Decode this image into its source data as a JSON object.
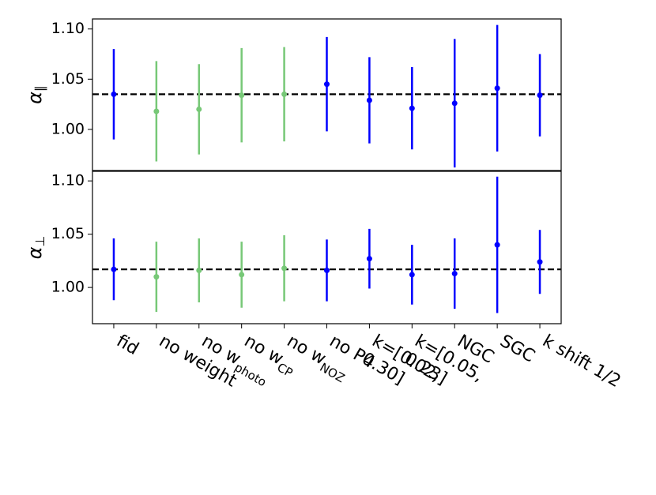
{
  "chart_data": [
    {
      "type": "errorbar",
      "ylabel": "α",
      "ylabel_sub": "∥",
      "values": [
        1.035,
        1.018,
        1.02,
        1.034,
        1.035,
        1.045,
        1.029,
        1.021,
        1.026,
        1.041,
        1.034
      ],
      "errors": [
        0.045,
        0.05,
        0.045,
        0.047,
        0.047,
        0.047,
        0.043,
        0.041,
        0.064,
        0.063,
        0.041
      ],
      "colors": [
        "#0000ff",
        "#77c877",
        "#77c877",
        "#77c877",
        "#77c877",
        "#0000ff",
        "#0000ff",
        "#0000ff",
        "#0000ff",
        "#0000ff",
        "#0000ff"
      ],
      "hline": 1.035,
      "ylim": [
        0.959,
        1.11
      ],
      "yticks": [
        {
          "value": 1,
          "label": "1.00"
        },
        1.05,
        {
          "value": 1.1,
          "label": "1.10"
        }
      ]
    },
    {
      "type": "errorbar",
      "ylabel": "α",
      "ylabel_sub": "⊥",
      "categories": [
        "fid",
        "no weight",
        "no w",
        "no w",
        "no w",
        "no P4",
        "k=[0.02,\n0.30]",
        "k=[0.05,\n0.23]",
        "NGC",
        "SGC",
        "k shift 1/2"
      ],
      "category_subscripts": [
        null,
        null,
        "photo",
        "CP",
        "NOZ",
        null,
        null,
        null,
        null,
        null,
        null
      ],
      "values": [
        1.017,
        1.01,
        1.016,
        1.012,
        1.018,
        1.016,
        1.027,
        1.012,
        1.013,
        1.04,
        1.024
      ],
      "errors": [
        0.029,
        0.033,
        0.03,
        0.031,
        0.031,
        0.029,
        0.028,
        0.028,
        0.033,
        0.064,
        0.03
      ],
      "colors": [
        "#0000ff",
        "#77c877",
        "#77c877",
        "#77c877",
        "#77c877",
        "#0000ff",
        "#0000ff",
        "#0000ff",
        "#0000ff",
        "#0000ff",
        "#0000ff"
      ],
      "hline": 1.017,
      "ylim": [
        0.966,
        1.109
      ],
      "yticks": [
        {
          "value": 1,
          "label": "1.00"
        },
        1.05,
        {
          "value": 1.1,
          "label": "1.10"
        }
      ]
    }
  ]
}
